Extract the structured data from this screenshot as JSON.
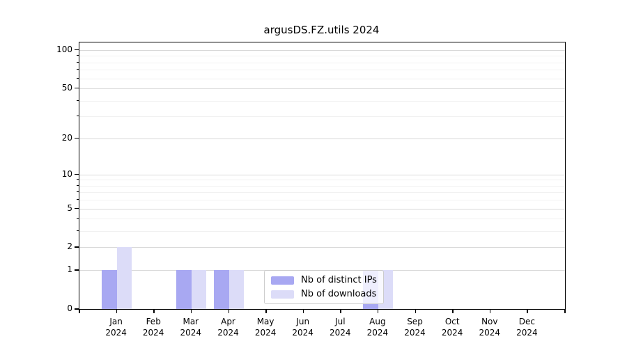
{
  "chart_data": {
    "type": "bar",
    "title": "argusDS.FZ.utils 2024",
    "categories": [
      "Jan",
      "Feb",
      "Mar",
      "Apr",
      "May",
      "Jun",
      "Jul",
      "Aug",
      "Sep",
      "Oct",
      "Nov",
      "Dec"
    ],
    "x_year_label": "2024",
    "series": [
      {
        "name": "Nb of distinct IPs",
        "color": "#a8a8f2",
        "values": [
          1,
          0,
          1,
          1,
          0,
          0,
          0,
          1,
          0,
          0,
          0,
          0
        ]
      },
      {
        "name": "Nb of downloads",
        "color": "#dcdcf8",
        "values": [
          2,
          0,
          1,
          1,
          0,
          0,
          0,
          1,
          0,
          0,
          0,
          0
        ]
      }
    ],
    "yscale": "log1p",
    "y_major_ticks": [
      0,
      1,
      2,
      5,
      10,
      20,
      50,
      100
    ],
    "y_minor_ticks": [
      3,
      4,
      6,
      7,
      8,
      9,
      30,
      40,
      60,
      70,
      80,
      90
    ],
    "ylim": [
      0,
      114
    ],
    "grid": true,
    "legend_position": "lower-center"
  },
  "colors": {
    "grid_major": "#d9d9d9",
    "grid_minor": "#f1f1f1",
    "spine": "#000000",
    "background": "#ffffff",
    "legend_border": "#cccccc"
  }
}
